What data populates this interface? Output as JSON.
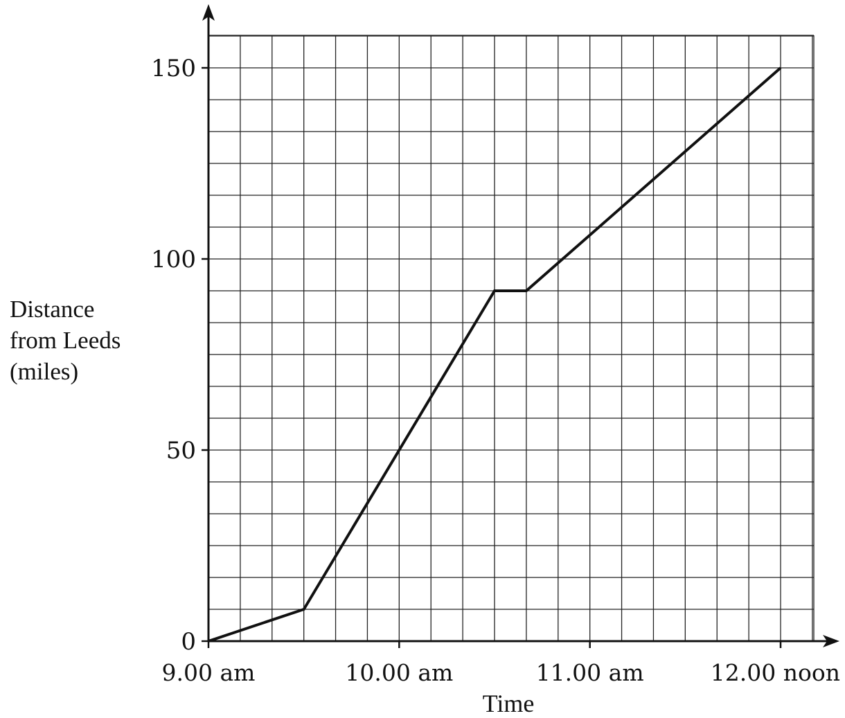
{
  "chart_data": {
    "type": "line",
    "title": "",
    "xlabel": "Time",
    "ylabel": [
      "Distance",
      "from Leeds",
      "(miles)"
    ],
    "x_unit": "hours after 9.00 am",
    "xlim": [
      0,
      3.166667
    ],
    "ylim": [
      0,
      150
    ],
    "x_tick_values": [
      0,
      1,
      2,
      3
    ],
    "x_tick_labels": [
      "9.00 am",
      "10.00 am",
      "11.00 am",
      "12.00 noon"
    ],
    "y_tick_values": [
      0,
      50,
      100,
      150
    ],
    "y_tick_labels": [
      "0",
      "50",
      "100",
      "150"
    ],
    "grid": {
      "on": true,
      "x_step": 0.166667,
      "y_step": 8.333333
    },
    "series": [
      {
        "name": "",
        "x_time": [
          "9.00 am",
          "9.30 am",
          "10.30 am",
          "10.40 am",
          "12.00 noon"
        ],
        "x": [
          0,
          0.5,
          1.5,
          1.666667,
          3
        ],
        "y": [
          0,
          8.333333,
          91.666667,
          91.666667,
          150
        ],
        "color": "#111111"
      }
    ]
  }
}
